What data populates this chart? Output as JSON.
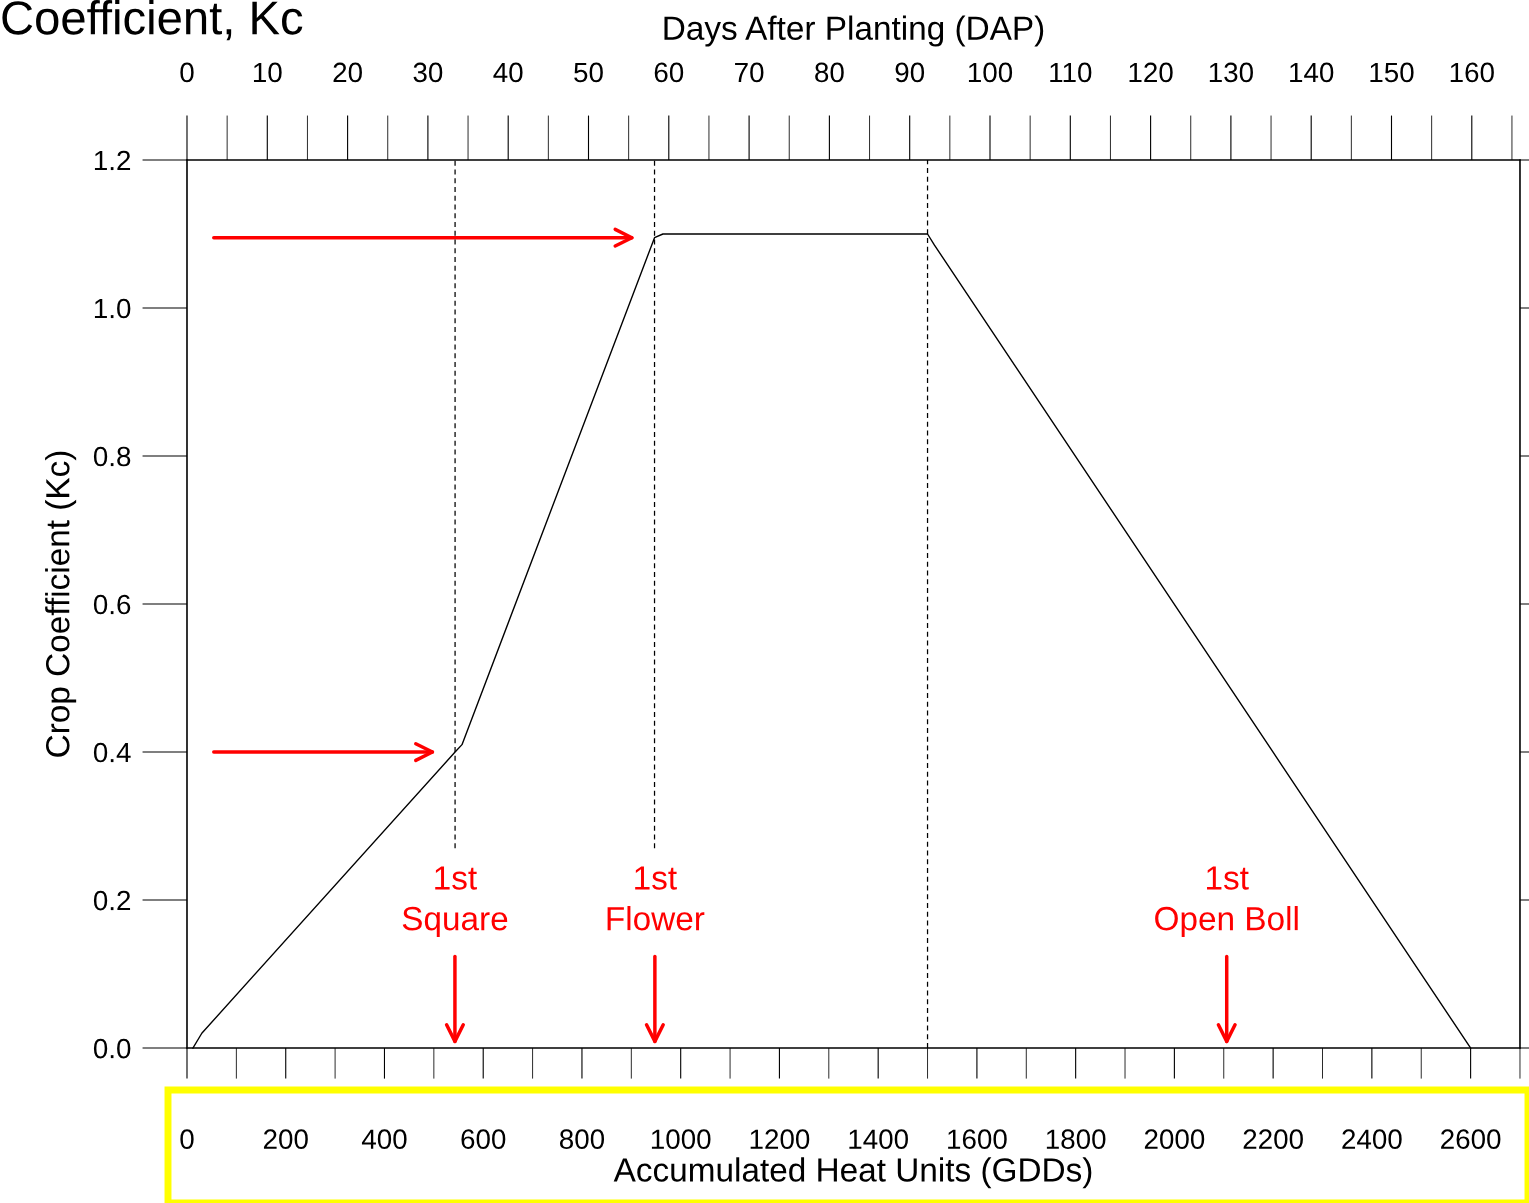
{
  "chart_data": {
    "type": "line",
    "title": "Coefficient, Kc",
    "xlabel": "Accumulated Heat Units (GDDs)",
    "ylabel": "Crop Coefficient (Kc)",
    "x2label": "Days After Planting (DAP)",
    "series": [
      {
        "color": "#000000",
        "line_style": "solid",
        "x": [
          12,
          30,
          543,
          557,
          947,
          964,
          1500,
          1514,
          2600
        ],
        "values": [
          0,
          0.02,
          0.4,
          0.41,
          1.095,
          1.1,
          1.1,
          1.085,
          0
        ]
      },
      {
        "color": "#000000",
        "line_style": "dashed",
        "x": [
          543,
          543
        ],
        "values": [
          0.27,
          1.2
        ]
      },
      {
        "color": "#000000",
        "line_style": "dashed",
        "x": [
          947,
          947
        ],
        "values": [
          0.27,
          1.2
        ]
      },
      {
        "color": "#000000",
        "line_style": "dashed",
        "x": [
          1500,
          1500
        ],
        "values": [
          0,
          1.2
        ]
      }
    ],
    "annotations": [
      "1st\nSquare",
      "1st\nFlower",
      "1st\nOpen Boll"
    ],
    "xlim": [
      0,
      2700
    ],
    "ylim": [
      0,
      1.2
    ],
    "x2lim": [
      0,
      166
    ],
    "xticks": [
      0,
      200,
      400,
      600,
      800,
      1000,
      1200,
      1400,
      1600,
      1800,
      2000,
      2200,
      2400,
      2600
    ],
    "yticks": [
      {
        "value": 0,
        "label": "0.0"
      },
      {
        "value": 0.2,
        "label": "0.2"
      },
      {
        "value": 0.4,
        "label": "0.4"
      },
      {
        "value": 0.6,
        "label": "0.6"
      },
      {
        "value": 0.8,
        "label": "0.8"
      },
      {
        "value": 1.0,
        "label": "1.0"
      },
      {
        "value": 1.2,
        "label": "1.2"
      }
    ],
    "x2ticks": [
      0,
      10,
      20,
      30,
      40,
      50,
      60,
      70,
      80,
      90,
      100,
      110,
      120,
      130,
      140,
      150,
      160
    ],
    "grid": false,
    "legend": false,
    "marker": "none"
  }
}
